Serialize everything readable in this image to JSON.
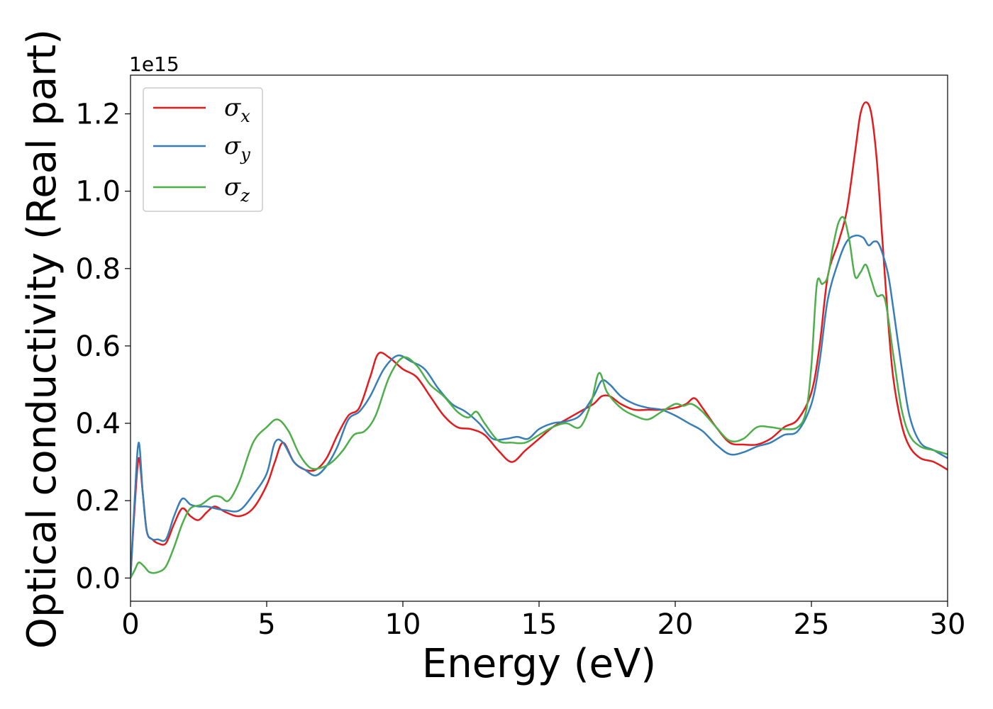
{
  "chart_data": {
    "type": "line",
    "xlabel": "Energy (eV)",
    "ylabel": "Optical conductivity (Real part)",
    "y_offset_label": "1e15",
    "xlim": [
      0,
      30
    ],
    "ylim": [
      -0.06,
      1.3
    ],
    "x_ticks": [
      0,
      5,
      10,
      15,
      20,
      25,
      30
    ],
    "x_tick_labels": [
      "0",
      "5",
      "10",
      "15",
      "20",
      "25",
      "30"
    ],
    "y_ticks": [
      0.0,
      0.2,
      0.4,
      0.6,
      0.8,
      1.0,
      1.2
    ],
    "y_tick_labels": [
      "0.0",
      "0.2",
      "0.4",
      "0.6",
      "0.8",
      "1.0",
      "1.2"
    ],
    "grid": false,
    "legend_position": "top-left",
    "series": [
      {
        "name": "σx",
        "legend_base": "σ",
        "legend_sub": "x",
        "color": "#e41a1c",
        "x": [
          0,
          0.15,
          0.3,
          0.45,
          0.6,
          0.8,
          1.0,
          1.3,
          1.6,
          1.9,
          2.2,
          2.5,
          2.8,
          3.1,
          3.5,
          4.0,
          4.5,
          5.0,
          5.3,
          5.6,
          6.0,
          6.4,
          6.8,
          7.2,
          7.6,
          8.0,
          8.4,
          8.8,
          9.1,
          9.5,
          10.0,
          10.5,
          11.0,
          11.5,
          12.0,
          12.5,
          13.0,
          13.5,
          14.0,
          14.5,
          15.0,
          15.5,
          16.0,
          16.5,
          17.0,
          17.3,
          17.6,
          18.0,
          18.5,
          19.0,
          19.5,
          20.0,
          20.4,
          20.7,
          21.0,
          21.5,
          22.0,
          22.5,
          23.0,
          23.5,
          24.0,
          24.5,
          25.0,
          25.3,
          25.6,
          26.0,
          26.3,
          26.6,
          26.8,
          27.0,
          27.2,
          27.4,
          27.6,
          27.8,
          28.0,
          28.3,
          28.6,
          29.0,
          29.5,
          30.0
        ],
        "y": [
          0.0,
          0.18,
          0.31,
          0.22,
          0.12,
          0.1,
          0.09,
          0.09,
          0.14,
          0.18,
          0.16,
          0.15,
          0.17,
          0.185,
          0.17,
          0.16,
          0.18,
          0.24,
          0.3,
          0.35,
          0.3,
          0.28,
          0.28,
          0.31,
          0.37,
          0.42,
          0.44,
          0.52,
          0.58,
          0.57,
          0.54,
          0.52,
          0.47,
          0.42,
          0.39,
          0.385,
          0.37,
          0.33,
          0.3,
          0.33,
          0.36,
          0.39,
          0.41,
          0.43,
          0.45,
          0.47,
          0.47,
          0.45,
          0.435,
          0.435,
          0.435,
          0.44,
          0.45,
          0.465,
          0.44,
          0.39,
          0.35,
          0.345,
          0.345,
          0.36,
          0.39,
          0.41,
          0.48,
          0.6,
          0.78,
          0.87,
          0.95,
          1.1,
          1.2,
          1.23,
          1.2,
          1.08,
          0.88,
          0.68,
          0.52,
          0.4,
          0.34,
          0.31,
          0.3,
          0.28
        ]
      },
      {
        "name": "σy",
        "legend_base": "σ",
        "legend_sub": "y",
        "color": "#377eb8",
        "x": [
          0,
          0.15,
          0.3,
          0.45,
          0.6,
          0.8,
          1.0,
          1.3,
          1.6,
          1.9,
          2.2,
          2.5,
          2.8,
          3.1,
          3.5,
          4.0,
          4.5,
          5.0,
          5.3,
          5.6,
          6.0,
          6.4,
          6.8,
          7.2,
          7.6,
          8.0,
          8.4,
          8.8,
          9.3,
          9.8,
          10.3,
          10.8,
          11.3,
          11.8,
          12.3,
          12.8,
          13.3,
          13.8,
          14.2,
          14.6,
          15.0,
          15.5,
          16.0,
          16.5,
          17.0,
          17.3,
          17.6,
          18.0,
          18.5,
          19.0,
          19.5,
          20.0,
          20.5,
          21.0,
          21.5,
          22.0,
          22.5,
          23.0,
          23.5,
          24.0,
          24.5,
          25.0,
          25.3,
          25.6,
          26.0,
          26.3,
          26.6,
          26.9,
          27.1,
          27.3,
          27.5,
          27.8,
          28.0,
          28.3,
          28.6,
          29.0,
          29.5,
          30.0
        ],
        "y": [
          0.0,
          0.2,
          0.35,
          0.22,
          0.12,
          0.1,
          0.1,
          0.1,
          0.16,
          0.205,
          0.19,
          0.185,
          0.185,
          0.18,
          0.175,
          0.175,
          0.215,
          0.27,
          0.35,
          0.35,
          0.3,
          0.28,
          0.265,
          0.29,
          0.34,
          0.41,
          0.43,
          0.47,
          0.54,
          0.575,
          0.56,
          0.54,
          0.49,
          0.45,
          0.43,
          0.4,
          0.36,
          0.36,
          0.365,
          0.36,
          0.385,
          0.4,
          0.405,
          0.42,
          0.47,
          0.51,
          0.5,
          0.47,
          0.45,
          0.44,
          0.435,
          0.42,
          0.4,
          0.38,
          0.345,
          0.32,
          0.325,
          0.34,
          0.35,
          0.37,
          0.38,
          0.45,
          0.56,
          0.72,
          0.82,
          0.87,
          0.885,
          0.88,
          0.86,
          0.87,
          0.86,
          0.79,
          0.7,
          0.55,
          0.42,
          0.35,
          0.33,
          0.31
        ]
      },
      {
        "name": "σz",
        "legend_base": "σ",
        "legend_sub": "z",
        "color": "#4daf4a",
        "x": [
          0,
          0.15,
          0.3,
          0.5,
          0.7,
          1.0,
          1.3,
          1.6,
          1.9,
          2.2,
          2.6,
          3.0,
          3.3,
          3.6,
          4.0,
          4.5,
          5.0,
          5.4,
          5.8,
          6.2,
          6.6,
          7.0,
          7.4,
          7.8,
          8.2,
          8.6,
          9.0,
          9.5,
          10.0,
          10.5,
          11.0,
          11.5,
          12.0,
          12.4,
          12.7,
          13.0,
          13.5,
          14.0,
          14.5,
          15.0,
          15.5,
          16.0,
          16.5,
          16.9,
          17.2,
          17.5,
          18.0,
          18.5,
          19.0,
          19.5,
          20.0,
          20.3,
          20.6,
          21.0,
          21.5,
          22.0,
          22.5,
          23.0,
          23.5,
          24.0,
          24.5,
          24.8,
          25.0,
          25.2,
          25.4,
          25.6,
          25.8,
          26.0,
          26.2,
          26.4,
          26.6,
          26.8,
          27.0,
          27.2,
          27.4,
          27.7,
          28.0,
          28.3,
          28.6,
          29.0,
          29.5,
          30.0
        ],
        "y": [
          0.0,
          0.02,
          0.04,
          0.03,
          0.015,
          0.015,
          0.03,
          0.08,
          0.14,
          0.18,
          0.19,
          0.21,
          0.21,
          0.2,
          0.25,
          0.35,
          0.39,
          0.41,
          0.38,
          0.32,
          0.285,
          0.285,
          0.3,
          0.33,
          0.37,
          0.38,
          0.42,
          0.52,
          0.57,
          0.55,
          0.5,
          0.47,
          0.43,
          0.415,
          0.43,
          0.4,
          0.355,
          0.35,
          0.35,
          0.37,
          0.39,
          0.4,
          0.39,
          0.45,
          0.53,
          0.48,
          0.44,
          0.42,
          0.41,
          0.43,
          0.45,
          0.445,
          0.45,
          0.43,
          0.39,
          0.355,
          0.36,
          0.39,
          0.39,
          0.385,
          0.39,
          0.43,
          0.55,
          0.76,
          0.76,
          0.78,
          0.86,
          0.92,
          0.93,
          0.87,
          0.78,
          0.79,
          0.81,
          0.77,
          0.73,
          0.72,
          0.58,
          0.44,
          0.37,
          0.34,
          0.33,
          0.32
        ]
      }
    ]
  }
}
